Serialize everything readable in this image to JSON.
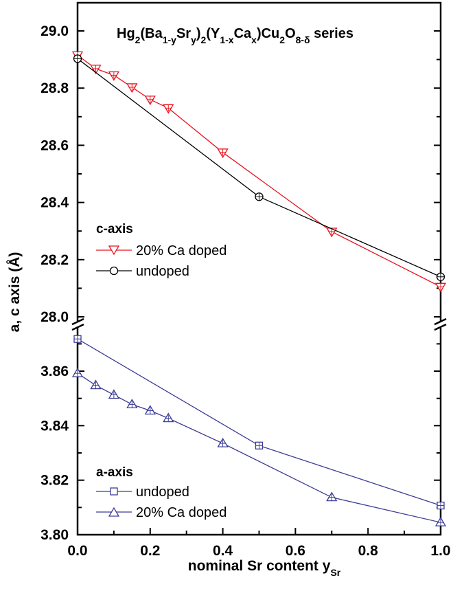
{
  "chart_data": {
    "type": "line",
    "title": {
      "pre": "Hg",
      "s1": "2",
      "t1": "(Ba",
      "s2": "1-y",
      "t2": "Sr",
      "s3": "y",
      "t3": ")",
      "s4": "2",
      "t4": "(Y",
      "s5": "1-x",
      "t5": "Ca",
      "s6": "x",
      "t6": ")Cu",
      "s7": "2",
      "t7": "O",
      "s8": "8-δ",
      "t8": " series"
    },
    "xlabel": {
      "main": "nominal Sr content y",
      "sub": "Sr"
    },
    "ylabel": "a,   c   axis (Å)",
    "xlim": [
      0.0,
      1.0
    ],
    "x_ticks": [
      "0.0",
      "0.2",
      "0.4",
      "0.6",
      "0.8",
      "1.0"
    ],
    "grid": false,
    "panels": [
      {
        "name": "c-axis",
        "position": "top",
        "ylim": [
          28.0,
          29.1
        ],
        "y_ticks": [
          "28.0",
          "28.2",
          "28.4",
          "28.6",
          "28.8",
          "29.0"
        ],
        "legend": {
          "heading": "c-axis",
          "entries": [
            "20% Ca doped",
            "undoped"
          ]
        },
        "series": [
          {
            "name": "20% Ca doped",
            "color": "#e8141e",
            "marker": "triangle-down",
            "x": [
              0.0,
              0.05,
              0.1,
              0.15,
              0.2,
              0.25,
              0.4,
              0.7,
              1.0
            ],
            "y": [
              28.915,
              28.868,
              28.845,
              28.803,
              28.76,
              28.73,
              28.575,
              28.298,
              28.105
            ]
          },
          {
            "name": "undoped",
            "color": "#000000",
            "marker": "circle",
            "x": [
              0.0,
              0.5,
              1.0
            ],
            "y": [
              28.903,
              28.42,
              28.14
            ]
          }
        ]
      },
      {
        "name": "a-axis",
        "position": "bottom",
        "ylim": [
          3.8,
          3.875
        ],
        "y_ticks": [
          "3.80",
          "3.82",
          "3.84",
          "3.86"
        ],
        "legend": {
          "heading": "a-axis",
          "entries": [
            "undoped",
            "20% Ca doped"
          ]
        },
        "series": [
          {
            "name": "undoped",
            "color": "#3c3c96",
            "marker": "square",
            "x": [
              0.0,
              0.5,
              1.0
            ],
            "y": [
              3.8718,
              3.8327,
              3.8107
            ]
          },
          {
            "name": "20% Ca doped",
            "color": "#3c3c96",
            "marker": "triangle-up",
            "x": [
              0.0,
              0.05,
              0.1,
              0.15,
              0.2,
              0.25,
              0.4,
              0.7,
              1.0
            ],
            "y": [
              3.8592,
              3.8548,
              3.8513,
              3.8478,
              3.8455,
              3.8427,
              3.8335,
              3.8137,
              3.8045
            ]
          }
        ]
      }
    ]
  }
}
